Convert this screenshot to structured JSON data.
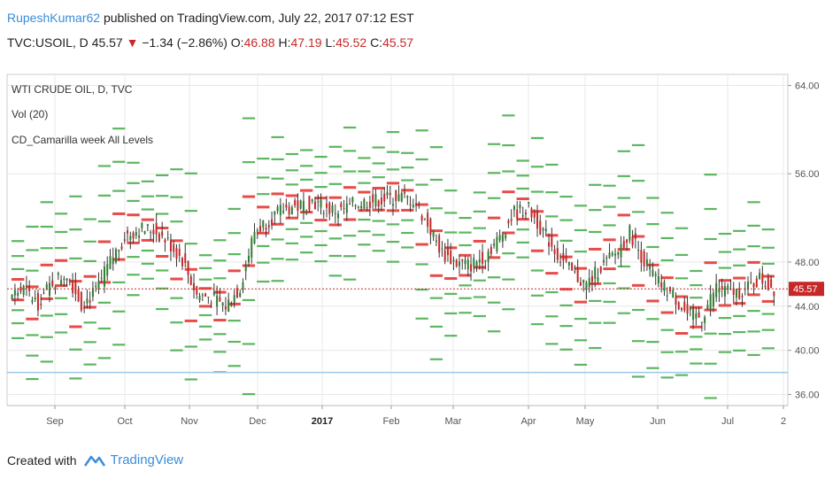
{
  "header": {
    "author": "RupeshKumar62",
    "published_text": "published on TradingView.com, July 22, 2017 07:12 EST",
    "symbol_line": "TVC:USOIL, D",
    "last": "45.57",
    "change": "−1.34 (−2.86%)",
    "o_label": "O:",
    "o_val": "46.88",
    "h_label": "H:",
    "h_val": "47.19",
    "l_label": "L:",
    "l_val": "45.52",
    "c_label": "C:",
    "c_val": "45.57"
  },
  "legend": {
    "line1": "WTI CRUDE OIL, D, TVC",
    "line2": "Vol (20)",
    "line3": "CD_Camarilla week All Levels"
  },
  "footer": {
    "created_with": "Created with",
    "brand": "TradingView"
  },
  "colors": {
    "up_candle": "#2e7d32",
    "down_candle": "#c62828",
    "level_green": "#4caf50",
    "level_red": "#e53935",
    "price_line": "#c62828",
    "blue_line": "#9ec9e8",
    "grid": "#e8e8e8"
  },
  "chart_data": {
    "type": "candlestick",
    "symbol": "TVC:USOIL",
    "timeframe": "D",
    "y_ticks": [
      "64.00",
      "56.00",
      "48.00",
      "44.00",
      "40.00",
      "36.00"
    ],
    "x_ticks": [
      "Sep",
      "Oct",
      "Nov",
      "Dec",
      "2017",
      "Feb",
      "Mar",
      "Apr",
      "May",
      "Jun",
      "Jul",
      "2"
    ],
    "ylim": [
      35,
      65
    ],
    "last_price_label": "45.57",
    "last_price": 45.57,
    "horizontal_line": 38.0,
    "grid": true,
    "weekly_close": [
      45.5,
      44.3,
      46.2,
      47.0,
      44.2,
      45.3,
      48.0,
      50.3,
      51.0,
      50.9,
      49.8,
      48.2,
      45.0,
      44.8,
      44.0,
      45.7,
      50.8,
      51.8,
      52.8,
      53.0,
      53.5,
      52.8,
      52.6,
      53.3,
      53.5,
      53.7,
      53.9,
      53.6,
      51.4,
      48.8,
      47.9,
      47.7,
      48.7,
      50.2,
      52.5,
      52.8,
      50.8,
      48.7,
      47.0,
      45.9,
      47.6,
      48.7,
      50.7,
      48.1,
      46.1,
      45.0,
      43.2,
      43.0,
      45.8,
      45.2,
      45.4,
      46.5,
      45.57
    ]
  }
}
